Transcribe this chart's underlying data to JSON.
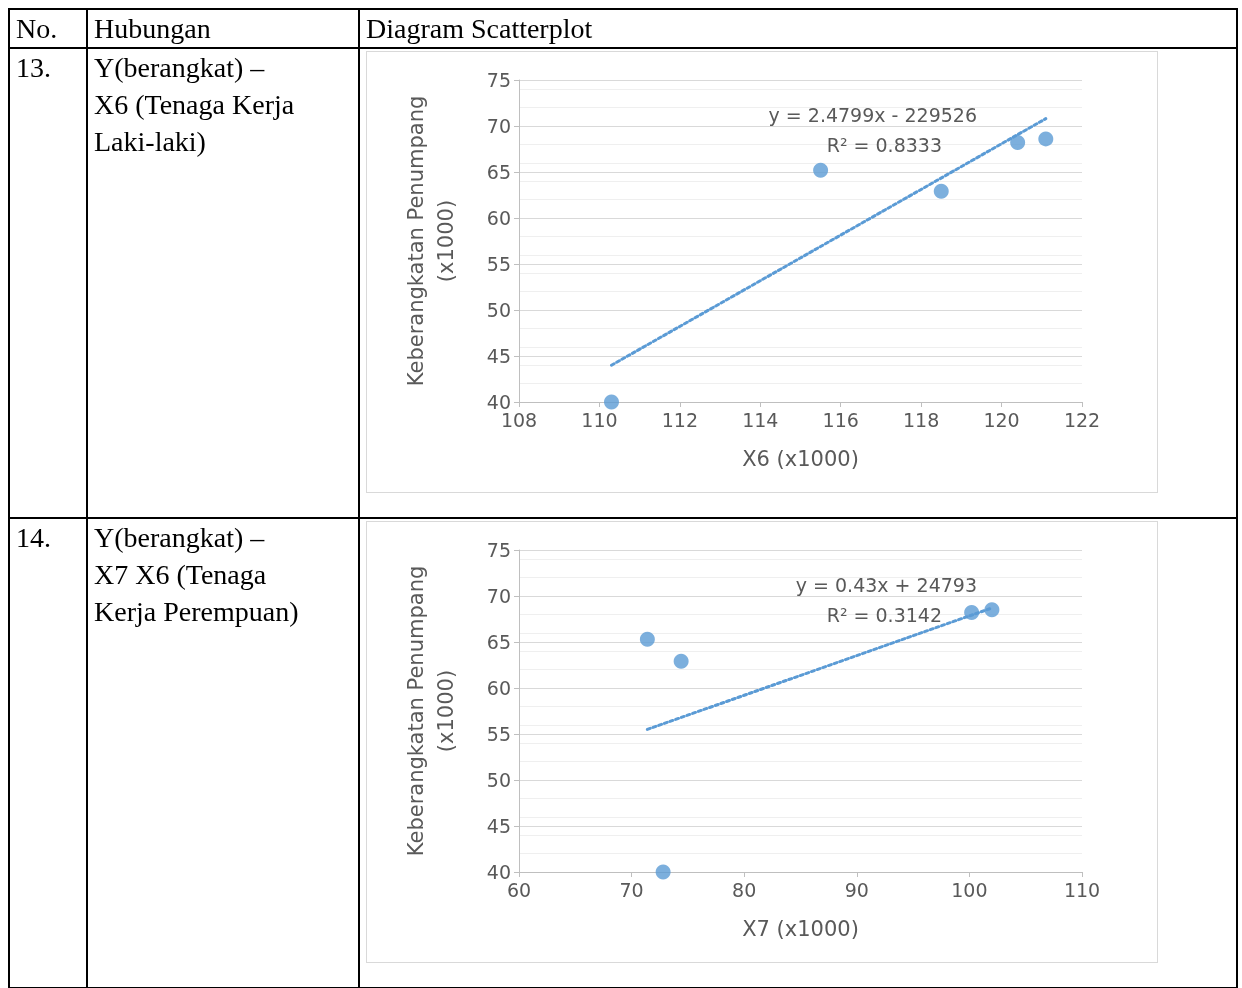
{
  "chart_data": [
    {
      "type": "other",
      "annotations": [
        "No.",
        "Hubungan",
        "Diagram Scatterplot",
        "13.",
        "Y(berangkat) –\nX6 (Tenaga Kerja\nLaki-laki)",
        "14.",
        "Y(berangkat) –\nX7 X6 (Tenaga\nKerja Perempuan)"
      ]
    },
    {
      "type": "scatter",
      "xlabel": "X6 (x1000)",
      "ylabel": "Keberangkatan Penumpang\n(x1000)",
      "xlim": [
        108,
        122
      ],
      "xticks": [
        108,
        110,
        112,
        114,
        116,
        118,
        120,
        122
      ],
      "ylim": [
        40,
        75
      ],
      "yticks": [
        40,
        45,
        50,
        55,
        60,
        65,
        70,
        75
      ],
      "grid": "y",
      "marker": "circle",
      "series": [
        {
          "color": "#5b9bd5",
          "x": [
            110.3,
            115.5,
            118.5,
            120.4,
            121.1
          ],
          "values": [
            40.0,
            65.2,
            62.9,
            68.2,
            68.6
          ]
        },
        {
          "type": "line",
          "color": "#5b9bd5",
          "marker": "none",
          "line_style": "dotted",
          "x": [
            110.3,
            121.1
          ],
          "values": [
            44.0,
            70.8
          ]
        }
      ],
      "annotations": [
        "y = 2.4799x - 229526",
        "R² = 0.8333"
      ]
    },
    {
      "type": "scatter",
      "xlabel": "X7 (x1000)",
      "ylabel": "Keberangkatan Penumpang\n(x1000)",
      "xlim": [
        60,
        110
      ],
      "xticks": [
        60,
        70,
        80,
        90,
        100,
        110
      ],
      "ylim": [
        40,
        75
      ],
      "yticks": [
        40,
        45,
        50,
        55,
        60,
        65,
        70,
        75
      ],
      "grid": "y",
      "marker": "circle",
      "series": [
        {
          "color": "#5b9bd5",
          "x": [
            71.4,
            74.4,
            72.8,
            100.2,
            102.0
          ],
          "values": [
            65.3,
            62.9,
            40.0,
            68.2,
            68.5
          ]
        },
        {
          "type": "line",
          "color": "#5b9bd5",
          "marker": "none",
          "line_style": "dotted",
          "x": [
            71.4,
            102.0
          ],
          "values": [
            55.5,
            68.7
          ]
        }
      ],
      "annotations": [
        "y = 0.43x + 24793",
        "R² = 0.3142"
      ]
    }
  ]
}
